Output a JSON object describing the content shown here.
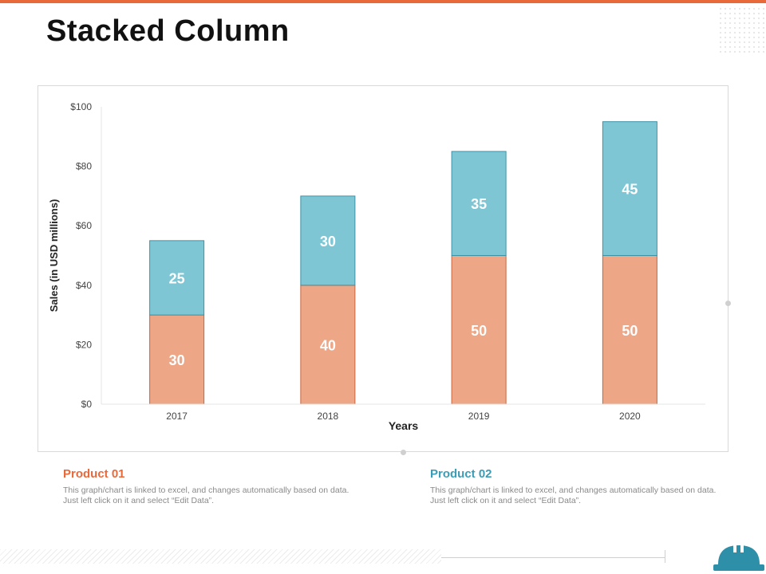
{
  "slide": {
    "title": "Stacked Column",
    "accent_color": "#E8693A"
  },
  "chart_data": {
    "type": "bar",
    "stacked": true,
    "categories": [
      "2017",
      "2018",
      "2019",
      "2020"
    ],
    "series": [
      {
        "name": "Product 01",
        "values": [
          30,
          40,
          50,
          50
        ],
        "color": "#EDA686"
      },
      {
        "name": "Product 02",
        "values": [
          25,
          30,
          35,
          45
        ],
        "color": "#7FC6D5"
      }
    ],
    "xlabel": "Years",
    "ylabel": "Sales (in USD millions)",
    "ylim": [
      0,
      100
    ],
    "yticks": [
      0,
      20,
      40,
      60,
      80,
      100
    ],
    "ytick_labels": [
      "$0",
      "$20",
      "$40",
      "$60",
      "$80",
      "$100"
    ],
    "data_labels": true,
    "legend": "none",
    "grid": false
  },
  "products": [
    {
      "title": "Product 01",
      "color": "#E8693A",
      "text": "This graph/chart is linked to excel, and changes automatically based on data. Just left click on it and select “Edit Data”."
    },
    {
      "title": "Product 02",
      "color": "#3A9DB5",
      "text": "This graph/chart is linked to excel, and changes automatically based on data. Just left click on it and select “Edit Data”."
    }
  ],
  "icons": {
    "footer": "helmet-icon",
    "helmet_color": "#2E8FA8"
  }
}
